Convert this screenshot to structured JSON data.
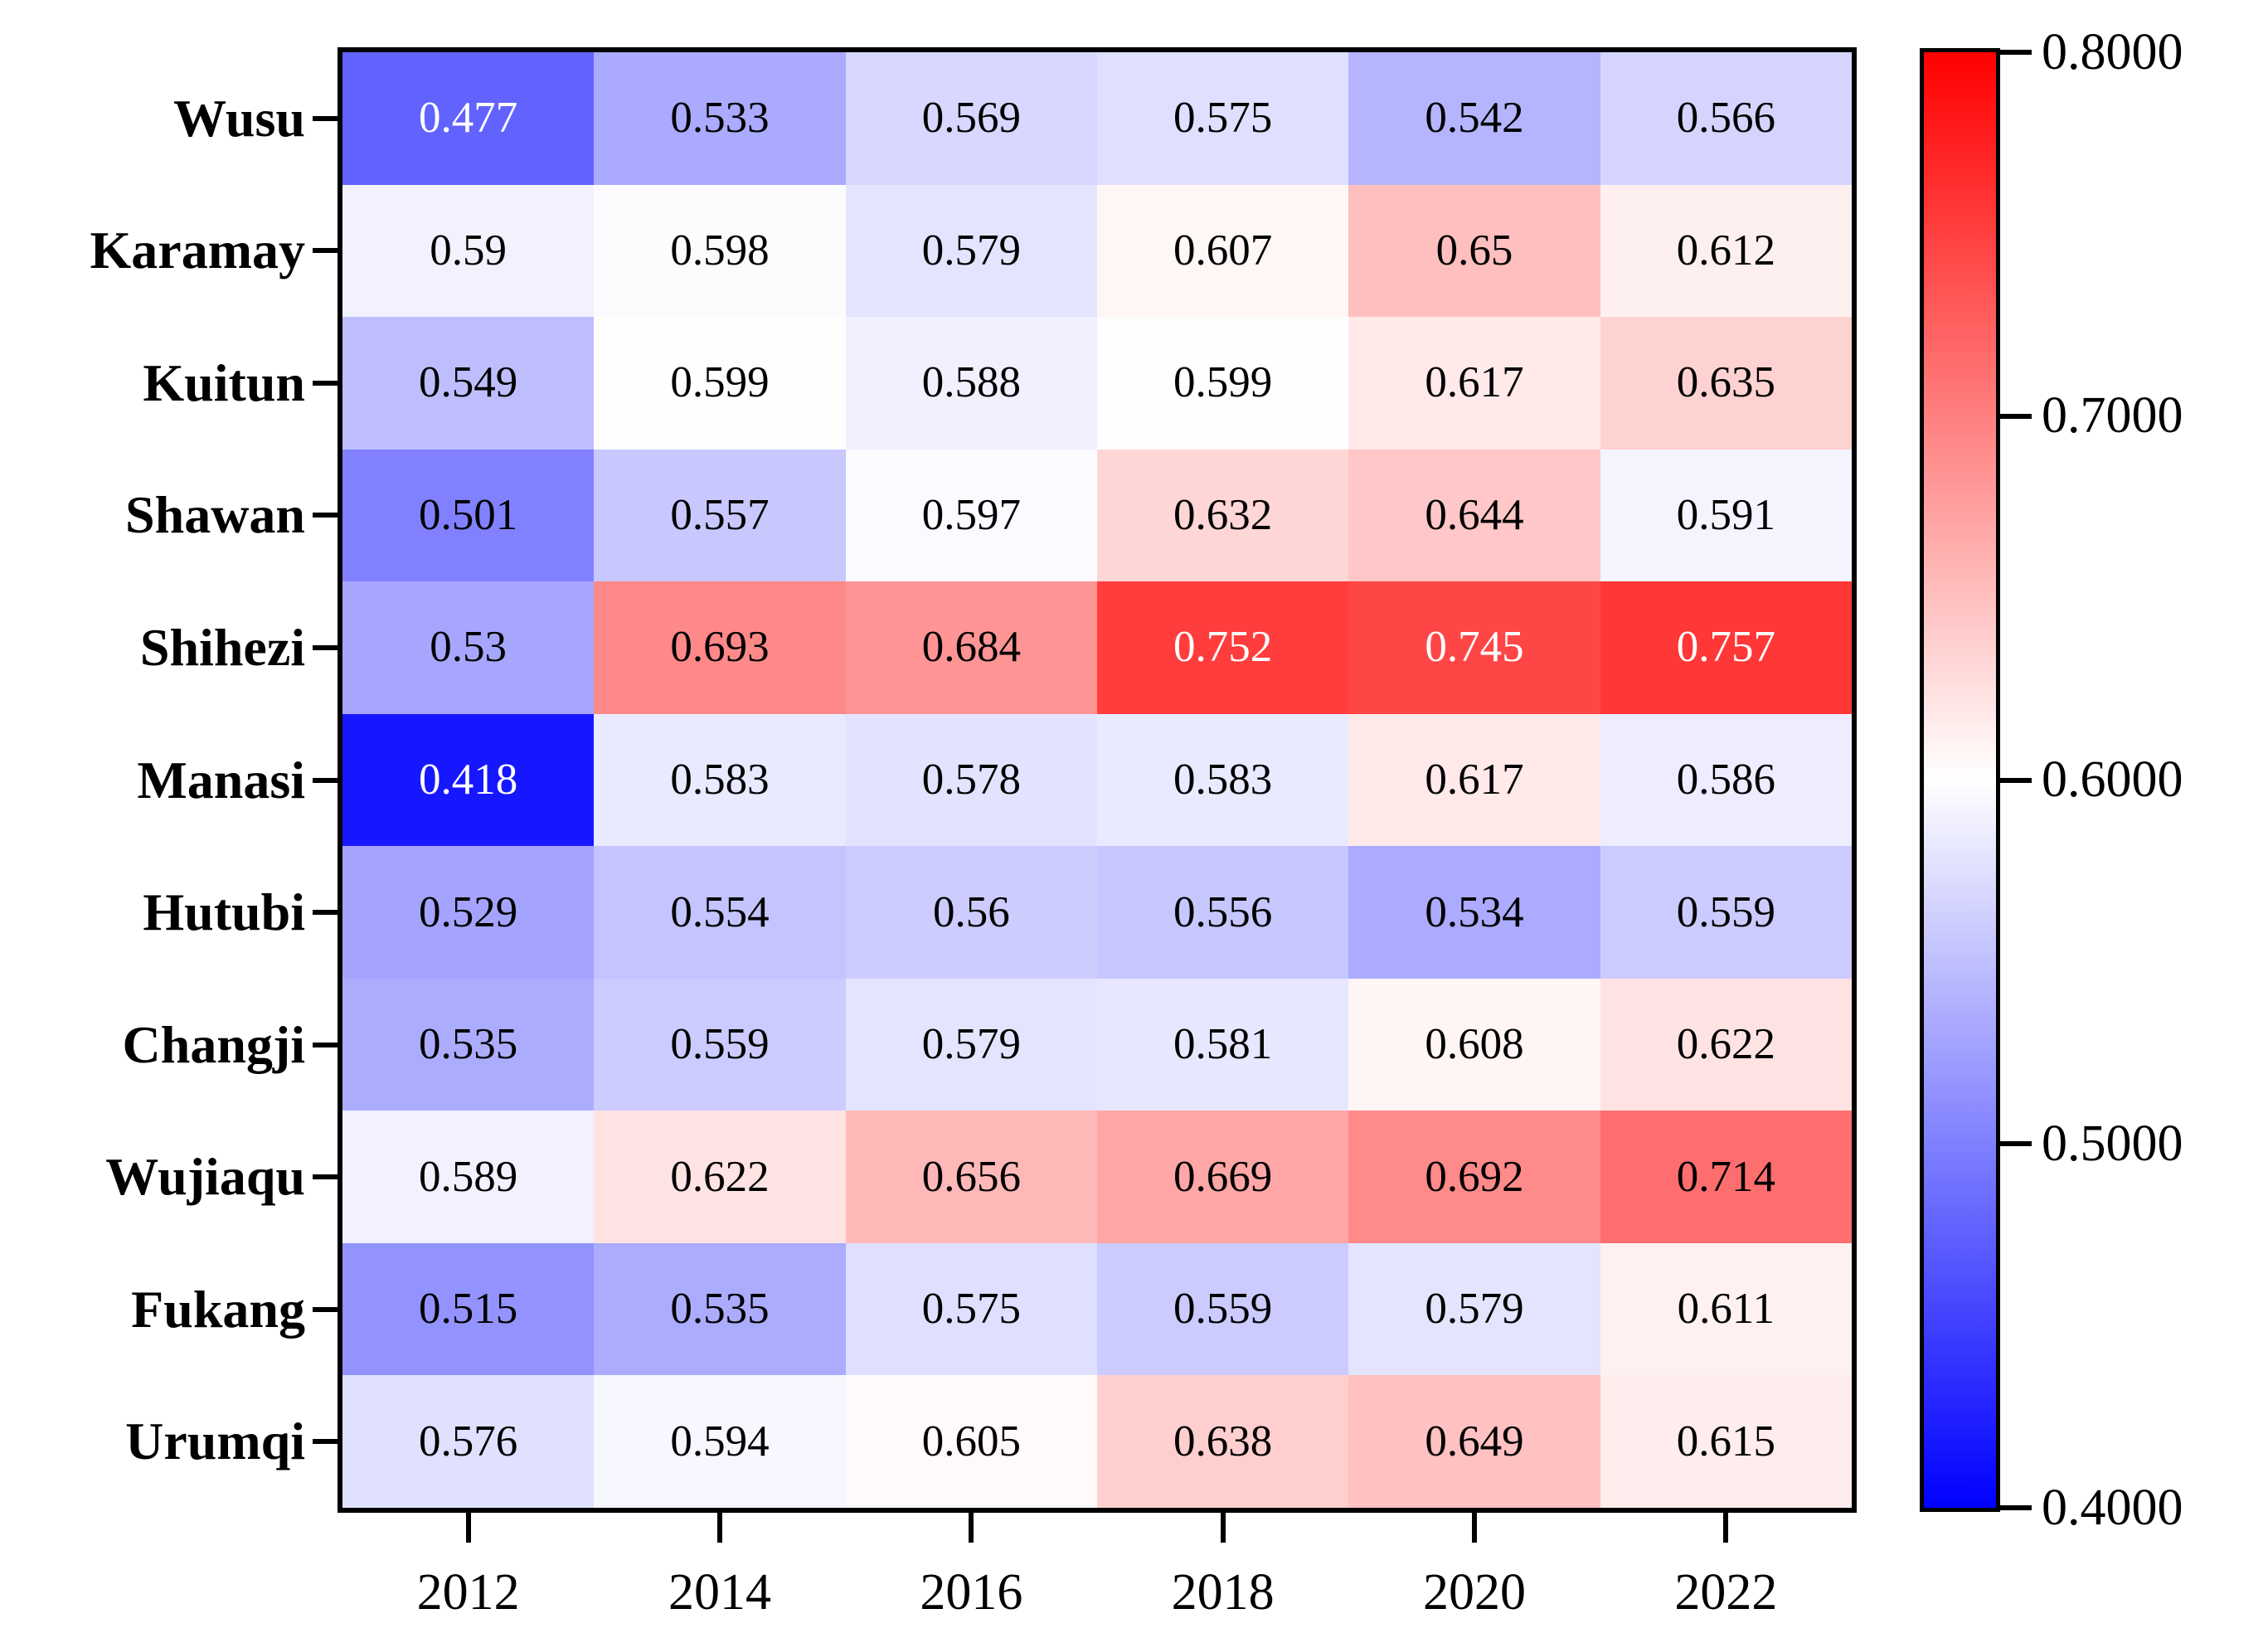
{
  "figure": {
    "background": "#ffffff",
    "axis_color": "#000000"
  },
  "chart_data": {
    "type": "heatmap",
    "title": "",
    "xlabel": "",
    "ylabel": "",
    "rows": [
      "Wusu",
      "Karamay",
      "Kuitun",
      "Shawan",
      "Shihezi",
      "Manasi",
      "Hutubi",
      "Changji",
      "Wujiaqu",
      "Fukang",
      "Urumqi"
    ],
    "columns": [
      "2012",
      "2014",
      "2016",
      "2018",
      "2020",
      "2022"
    ],
    "values": [
      [
        0.477,
        0.533,
        0.569,
        0.575,
        0.542,
        0.566
      ],
      [
        0.59,
        0.598,
        0.579,
        0.607,
        0.65,
        0.612
      ],
      [
        0.549,
        0.599,
        0.588,
        0.599,
        0.617,
        0.635
      ],
      [
        0.501,
        0.557,
        0.597,
        0.632,
        0.644,
        0.591
      ],
      [
        0.53,
        0.693,
        0.684,
        0.752,
        0.745,
        0.757
      ],
      [
        0.418,
        0.583,
        0.578,
        0.583,
        0.617,
        0.586
      ],
      [
        0.529,
        0.554,
        0.56,
        0.556,
        0.534,
        0.559
      ],
      [
        0.535,
        0.559,
        0.579,
        0.581,
        0.608,
        0.622
      ],
      [
        0.589,
        0.622,
        0.656,
        0.669,
        0.692,
        0.714
      ],
      [
        0.515,
        0.535,
        0.575,
        0.559,
        0.579,
        0.611
      ],
      [
        0.576,
        0.594,
        0.605,
        0.638,
        0.649,
        0.615
      ]
    ],
    "vmin": 0.4,
    "vmax": 0.8,
    "colormap": {
      "name": "bwr",
      "low": "#0000ff",
      "mid": "#ffffff",
      "high": "#ff0000"
    },
    "colorbar": {
      "position": "right",
      "tick_labels": [
        "0.8000",
        "0.7000",
        "0.6000",
        "0.5000",
        "0.4000"
      ],
      "tick_values": [
        0.8,
        0.7,
        0.6,
        0.5,
        0.4
      ]
    },
    "grid": false,
    "legend_position": "colorbar-right"
  }
}
